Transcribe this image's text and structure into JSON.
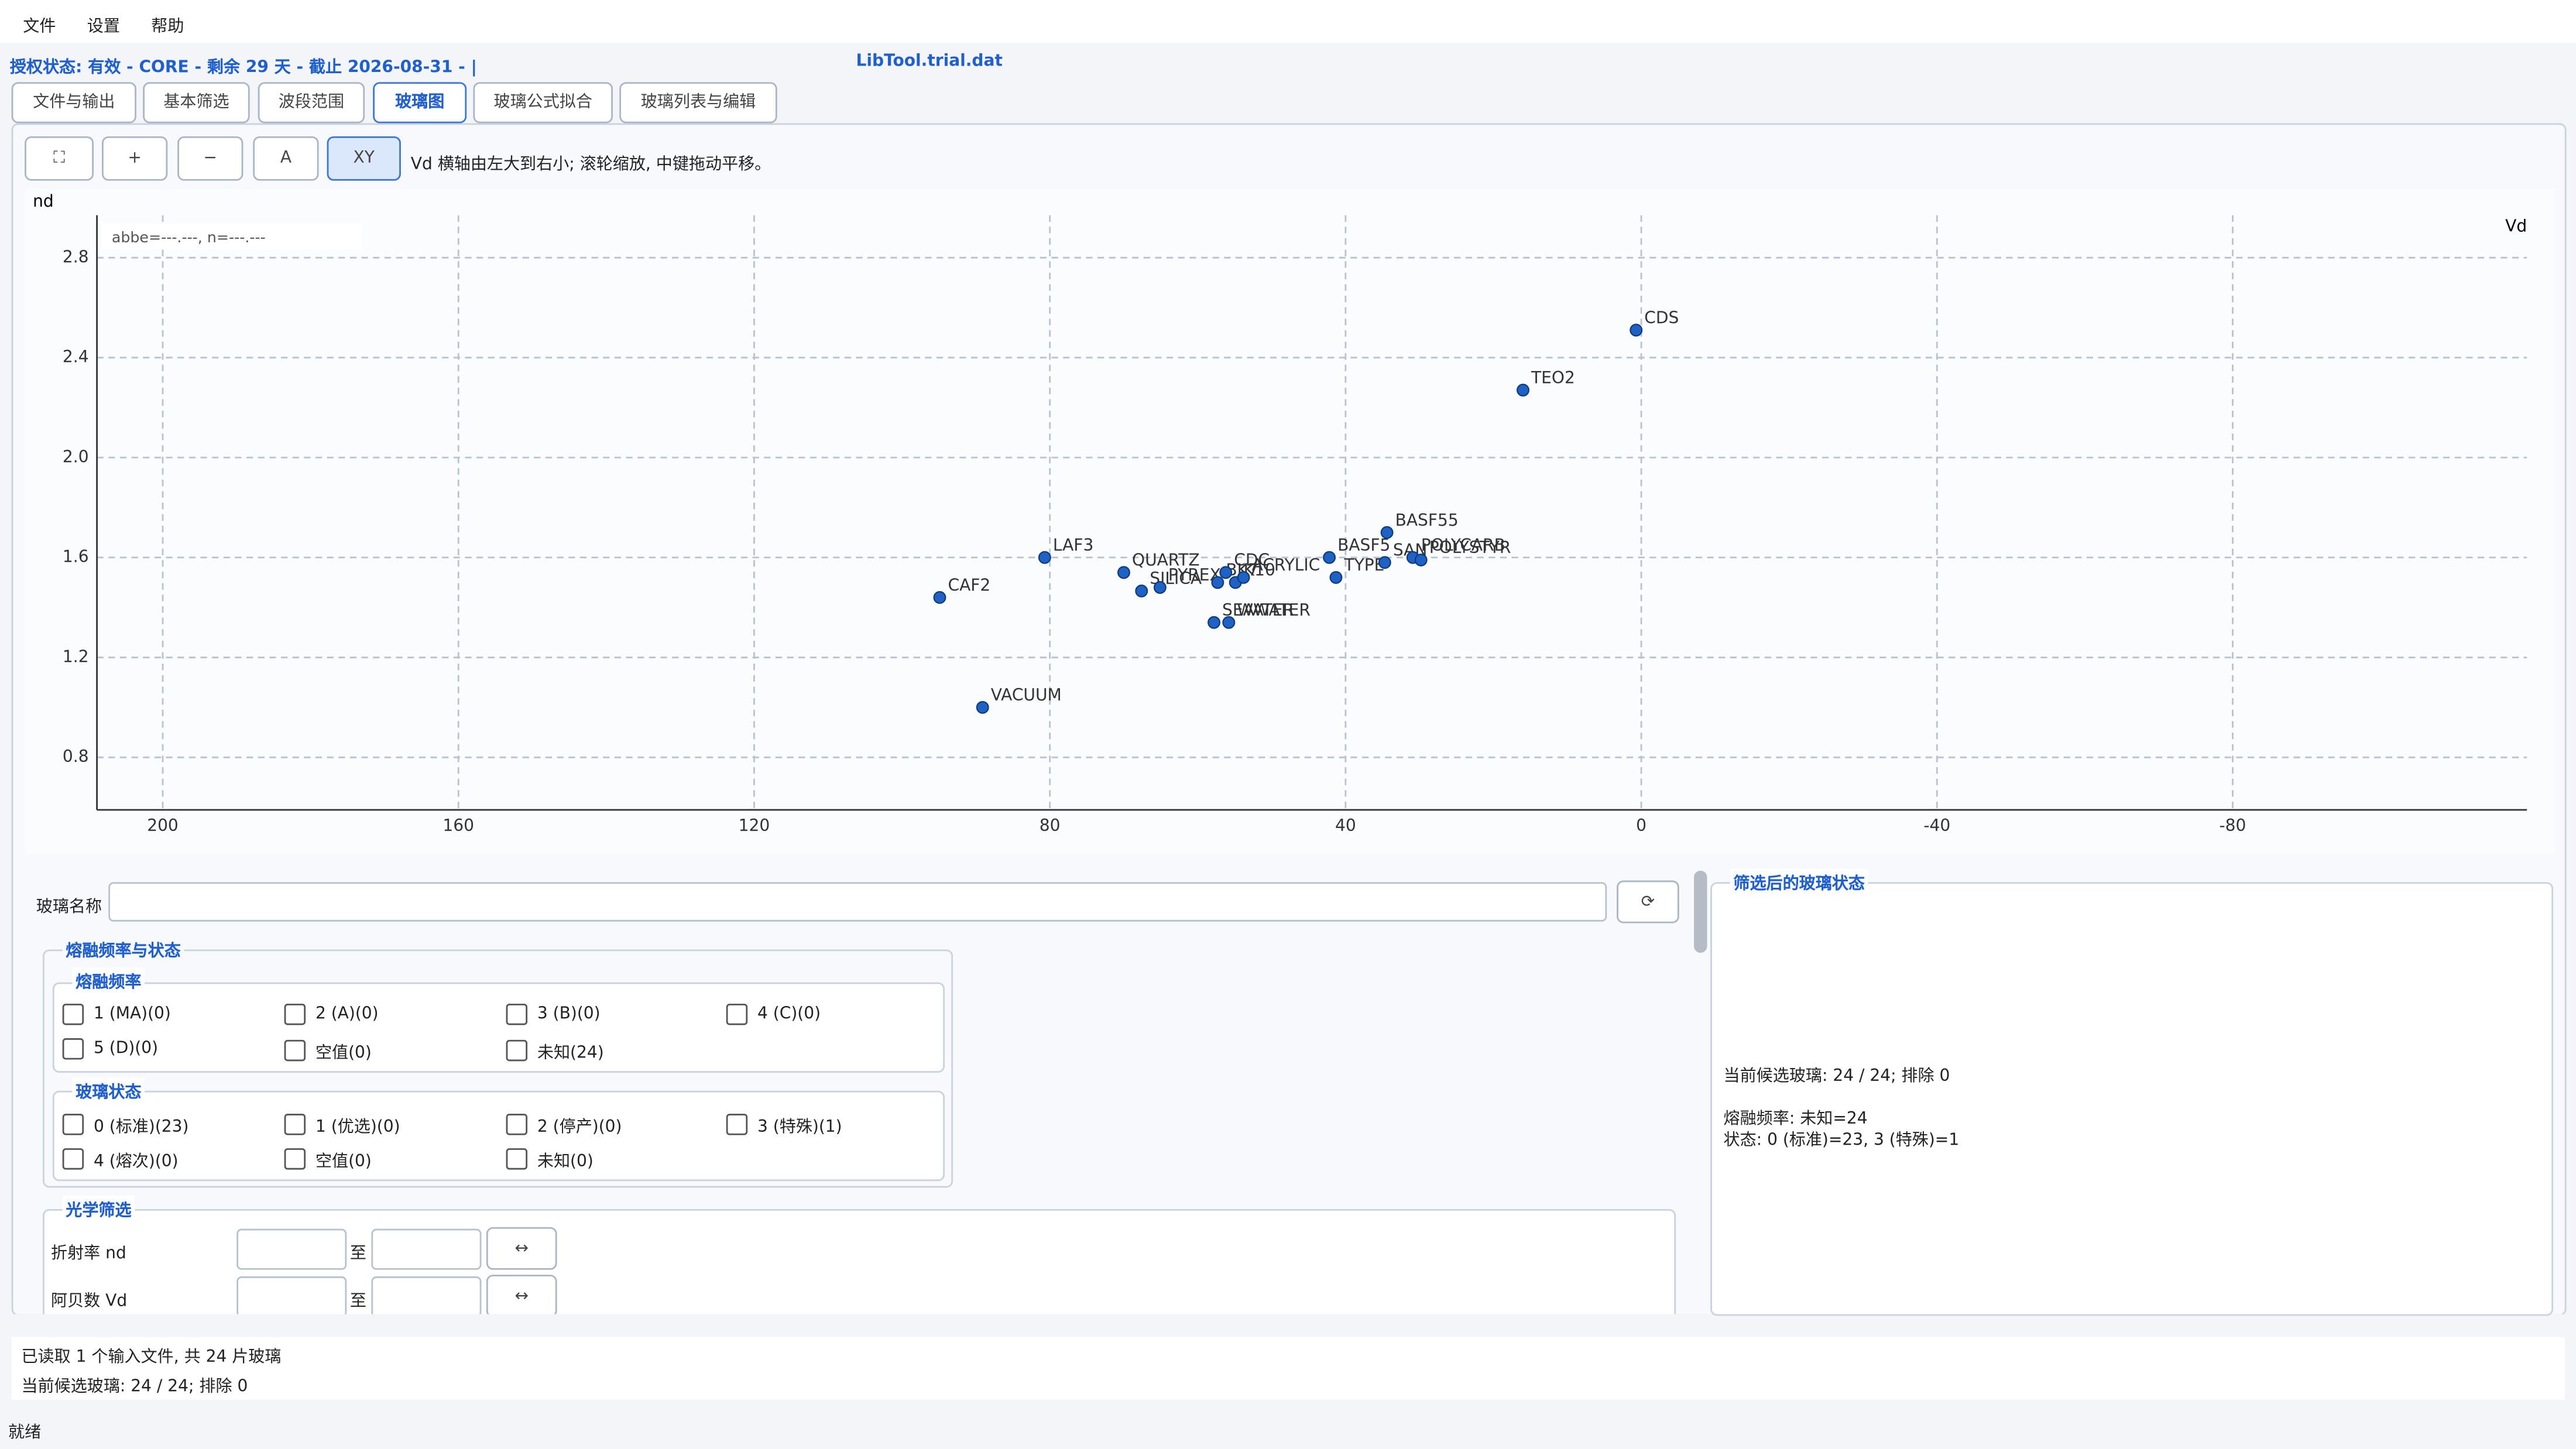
{
  "menu": [
    "文件",
    "设置",
    "帮助"
  ],
  "license": "授权状态: 有效 - CORE - 剩余 29 天 - 截止 2026-08-31 - |",
  "file": "LibTool.trial.dat",
  "tabs": [
    "文件与输出",
    "基本筛选",
    "波段范围",
    "玻璃图",
    "玻璃公式拟合",
    "玻璃列表与编辑"
  ],
  "toolbar": {
    "buttons": [
      "⛶",
      "+",
      "−",
      "A",
      "XY"
    ],
    "hint": "Vd 横轴由左大到右小; 滚轮缩放, 中键拖动平移。"
  },
  "chart_data": {
    "type": "scatter",
    "x_label": "Vd",
    "y_label": "nd",
    "annotation": "abbe=---.---, n=---.---",
    "point_labels": [
      "CDS",
      "TEO2",
      "BASF55",
      "BASF5",
      "TYPE",
      "SAN",
      "POLYCARB",
      "POLYSTYR",
      "LAF3",
      "QUARTZ",
      "CAF2",
      "VACUUM",
      "SEAWATER",
      "WATER",
      "SILICA",
      "PYREX",
      "BK7",
      "CDC",
      "K10",
      "ACRYLIC"
    ],
    "x": [
      0.7,
      16,
      34.4,
      42.2,
      41.3,
      34.7,
      30.9,
      29.8,
      80.7,
      70,
      94.9,
      89.1,
      57.8,
      55.8,
      67.6,
      65.1,
      57.3,
      56.2,
      54.9,
      53.8
    ],
    "values": [
      2.51,
      2.27,
      1.7,
      1.6,
      1.52,
      1.58,
      1.6,
      1.59,
      1.6,
      1.54,
      1.44,
      1.0,
      1.34,
      1.34,
      1.466,
      1.48,
      1.5,
      1.54,
      1.5,
      1.52
    ],
    "color": "#1f62c4",
    "xlim": [
      208.9,
      -119.8
    ],
    "xticks": [
      200,
      160,
      120,
      80,
      40,
      0,
      -40,
      -80
    ],
    "ylim": [
      0.59,
      2.97
    ],
    "yticks": [
      0.8,
      1.2,
      1.6,
      {
        "value": 2,
        "label": "2.0"
      },
      2.4,
      2.8
    ],
    "grid": true
  },
  "filter": {
    "name_label": "玻璃名称",
    "refresh": "⟳",
    "group_title": "熔融频率与状态",
    "melt_title": "熔融频率",
    "melt": [
      "1 (MA)(0)",
      "2 (A)(0)",
      "3 (B)(0)",
      "4 (C)(0)",
      "5 (D)(0)",
      "空值(0)",
      "未知(24)"
    ],
    "status_title": "玻璃状态",
    "status": [
      "0 (标准)(23)",
      "1 (优选)(0)",
      "2 (停产)(0)",
      "3 (特殊)(1)",
      "4 (熔次)(0)",
      "空值(0)",
      "未知(0)"
    ],
    "optical_title": "光学筛选",
    "nd_label": "折射率 nd",
    "vd_label": "阿贝数 Vd",
    "to": "至",
    "swap": "↔"
  },
  "result": {
    "title": "筛选后的玻璃状态",
    "lines": [
      "当前候选玻璃: 24 / 24; 排除 0",
      "熔融频率: 未知=24",
      "状态: 0 (标准)=23, 3 (特殊)=1"
    ]
  },
  "log": [
    "已读取 1 个输入文件, 共 24 片玻璃",
    "当前候选玻璃: 24 / 24; 排除 0"
  ],
  "status_bar": "就绪"
}
